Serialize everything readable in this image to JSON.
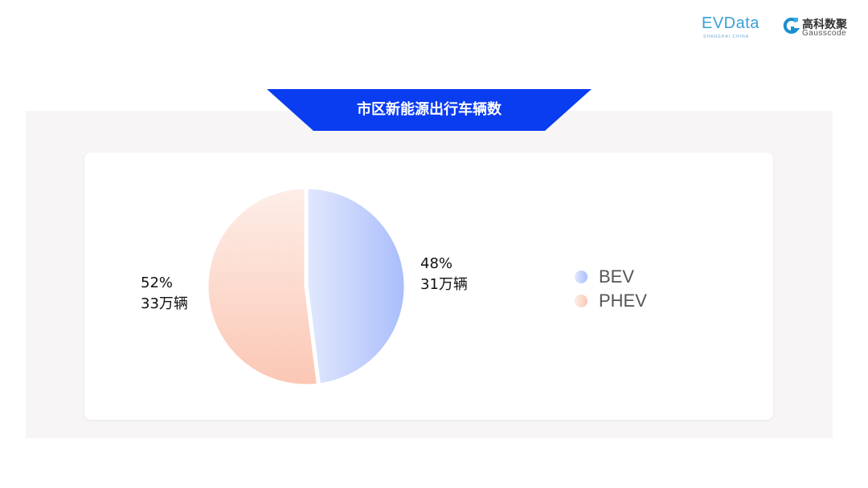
{
  "header": {
    "logo_evdata": "EVData",
    "logo_evdata_sub": "SHANGHAI CHINA",
    "logo_gauss_cn": "高科数聚",
    "logo_gauss_en": "Gausscode"
  },
  "banner": {
    "title": "市区新能源出行车辆数",
    "color": "#0a3cf0"
  },
  "chart_data": {
    "type": "pie",
    "title": "市区新能源出行车辆数",
    "legend_position": "right",
    "slices": [
      {
        "name": "BEV",
        "percent": 48,
        "value_label": "31万辆",
        "pct_label": "48%",
        "color_start": "#e2e8fd",
        "color_end": "#a9bdfb"
      },
      {
        "name": "PHEV",
        "percent": 52,
        "value_label": "33万辆",
        "pct_label": "52%",
        "color_start": "#fdeee8",
        "color_end": "#fcc7b4"
      }
    ]
  }
}
